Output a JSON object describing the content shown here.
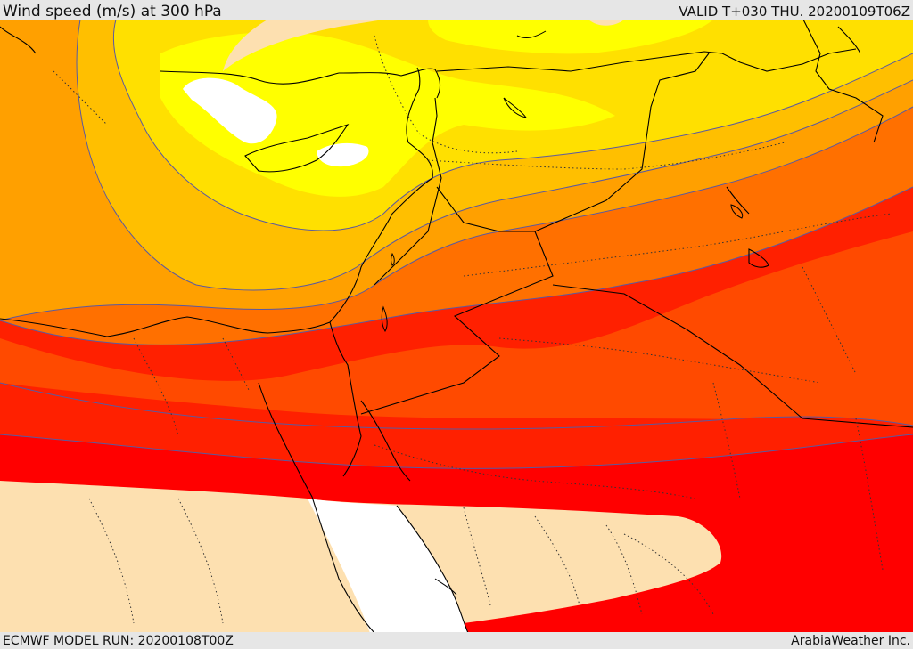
{
  "header": {
    "title": "Wind speed (m/s) at 300 hPa",
    "valid": "VALID T+030 THU. 20200109T06Z"
  },
  "footer": {
    "model_run": "ECMWF MODEL RUN: 20200108T00Z",
    "brand": "ArabiaWeather Inc."
  },
  "colors": {
    "band_low": "#fde0b0",
    "band_white": "#ffffff",
    "yellow": "#ffff00",
    "yellow_orange": "#ffe000",
    "light_orange": "#ffbf00",
    "orange": "#ffa000",
    "dark_orange": "#ff7000",
    "red_orange": "#ff4a00",
    "red": "#ff2000",
    "bright_red": "#ff0000",
    "contour": "#5a5aa0",
    "border": "#000000"
  }
}
